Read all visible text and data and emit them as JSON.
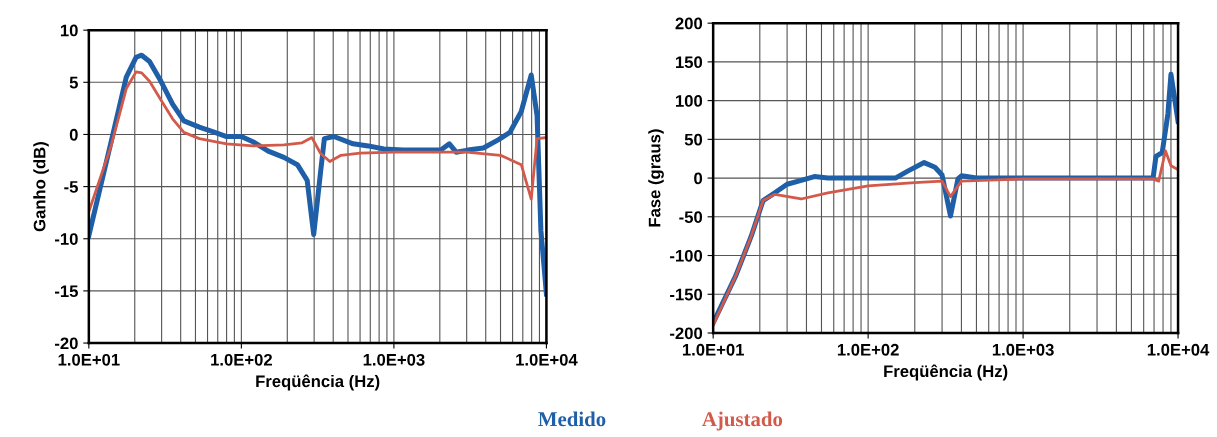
{
  "chart_data": [
    {
      "type": "line",
      "xlabel": "Freqüência (Hz)",
      "ylabel": "Ganho (dB)",
      "log": "x",
      "grid": true,
      "legend": "bottom",
      "xlim": [
        10,
        10000
      ],
      "ylim": [
        -20,
        10
      ],
      "xticks": [
        {
          "value": 10,
          "label": "1.0E+01"
        },
        {
          "value": 100,
          "label": "1.0E+02"
        },
        {
          "value": 1000,
          "label": "1.0E+03"
        },
        {
          "value": 10000,
          "label": "1.0E+04"
        }
      ],
      "yticks": [
        -20,
        -15,
        -10,
        -5,
        0,
        5,
        10
      ],
      "series": [
        {
          "name": "Medido",
          "color": "#1f5fa8",
          "x": [
            10,
            14,
            17.6,
            20.4,
            22.2,
            25,
            29.7,
            35.4,
            42,
            53,
            67,
            80,
            100,
            119,
            150,
            190,
            233,
            270,
            298,
            330,
            350,
            404,
            540,
            680,
            860,
            1150,
            2030,
            2310,
            2560,
            3050,
            3860,
            4860,
            5760,
            6840,
            7950,
            8680,
            9200,
            10000
          ],
          "values": [
            -9.7,
            -0.7,
            5.5,
            7.4,
            7.6,
            7.0,
            5.1,
            2.9,
            1.3,
            0.7,
            0.2,
            -0.2,
            -0.2,
            -0.7,
            -1.6,
            -2.2,
            -2.9,
            -4.4,
            -9.6,
            -3.7,
            -0.4,
            -0.2,
            -0.9,
            -1.1,
            -1.4,
            -1.5,
            -1.5,
            -0.9,
            -1.7,
            -1.5,
            -1.3,
            -0.5,
            0.2,
            2.2,
            5.7,
            1.8,
            -9.2,
            -15.3
          ]
        },
        {
          "name": "Ajustado",
          "color": "#d35a4a",
          "x": [
            10,
            14,
            17.6,
            20.4,
            22.2,
            25,
            29.7,
            35.4,
            42,
            53,
            80,
            119,
            190,
            250,
            290,
            330,
            380,
            450,
            600,
            1000,
            3000,
            5000,
            6840,
            7950,
            8680,
            10000
          ],
          "values": [
            -7.4,
            -1.1,
            4.4,
            6.0,
            5.9,
            5.1,
            3.3,
            1.5,
            0.2,
            -0.4,
            -0.9,
            -1.1,
            -1.0,
            -0.8,
            -0.3,
            -1.8,
            -2.6,
            -2.0,
            -1.8,
            -1.7,
            -1.7,
            -2.0,
            -2.9,
            -6.2,
            -0.4,
            -0.3
          ]
        }
      ]
    },
    {
      "type": "line",
      "xlabel": "Freqüência (Hz)",
      "ylabel": "Fase (graus)",
      "log": "x",
      "grid": true,
      "xlim": [
        10,
        10000
      ],
      "ylim": [
        -200,
        200
      ],
      "xticks": [
        {
          "value": 10,
          "label": "1.0E+01"
        },
        {
          "value": 100,
          "label": "1.0E+02"
        },
        {
          "value": 1000,
          "label": "1.0E+03"
        },
        {
          "value": 10000,
          "label": "1.0E+04"
        }
      ],
      "yticks": [
        -200,
        -150,
        -100,
        -50,
        0,
        50,
        100,
        150,
        200
      ],
      "series": [
        {
          "color": "#1f5fa8",
          "x": [
            10,
            14,
            17.6,
            21,
            25,
            30,
            37,
            45,
            55,
            100,
            150,
            180,
            230,
            270,
            300,
            340,
            380,
            400,
            500,
            1000,
            6900,
            7200,
            7900,
            8600,
            9000,
            9500,
            10000
          ],
          "values": [
            -187,
            -126,
            -75,
            -29,
            -19,
            -8,
            -3,
            2,
            0,
            0,
            0,
            9,
            20,
            14,
            4,
            -49,
            -1,
            3,
            0,
            0,
            0,
            28,
            33,
            83,
            134,
            103,
            73
          ]
        },
        {
          "color": "#d35a4a",
          "x": [
            10,
            14,
            17.6,
            21,
            25,
            37,
            55,
            100,
            200,
            300,
            340,
            400,
            1000,
            6900,
            7500,
            8300,
            9000,
            10000
          ],
          "values": [
            -190,
            -126,
            -75,
            -29,
            -21,
            -27,
            -19,
            -10,
            -6,
            -4,
            -24,
            -4,
            -1,
            -1,
            -4,
            35,
            16,
            11
          ]
        }
      ]
    }
  ]
}
